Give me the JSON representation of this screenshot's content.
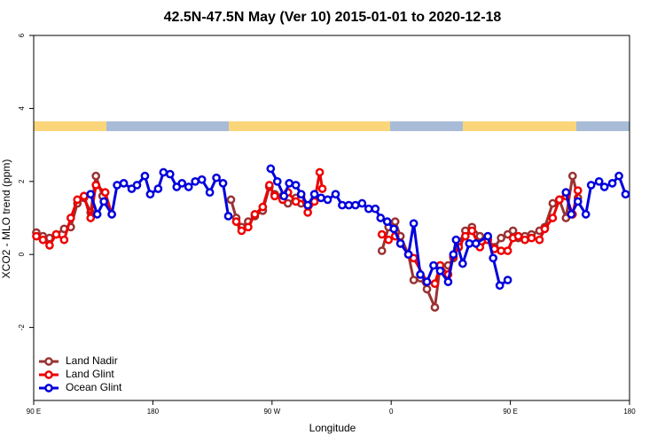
{
  "chart_data": {
    "type": "line",
    "title": "42.5N-47.5N May (Ver 10)   2015-01-01 to 2020-12-18",
    "x_label": "Longitude",
    "y_label": "XCO2 - MLO trend (ppm)",
    "xlim": [
      90,
      540
    ],
    "ylim": [
      -4,
      6
    ],
    "xticks": [
      {
        "value": 90,
        "label": "90 E"
      },
      180,
      {
        "value": 270,
        "label": "90 W"
      },
      {
        "value": 360,
        "label": "0"
      },
      {
        "value": 450,
        "label": "90 E"
      },
      {
        "value": 540,
        "label": "180"
      }
    ],
    "yticks": [
      -2,
      0,
      2,
      4,
      6
    ],
    "legend": "bottom-left",
    "series": [
      {
        "name": "Land Nadir",
        "color": "#993333",
        "x": [
          92,
          97,
          102,
          107,
          113,
          118,
          123,
          128,
          133,
          137,
          142,
          null,
          239,
          243,
          247,
          252,
          257,
          263,
          268,
          272,
          278,
          282,
          288,
          292,
          null,
          353,
          358,
          363,
          367,
          373,
          377,
          382,
          387,
          393,
          397,
          403,
          407,
          411,
          416,
          421,
          427,
          433,
          438,
          443,
          448,
          452,
          456,
          461,
          466,
          472,
          476,
          482,
          487,
          492,
          497,
          501
        ],
        "values": [
          0.6,
          0.5,
          0.45,
          0.55,
          0.7,
          0.75,
          1.4,
          1.55,
          1.15,
          2.15,
          1.6,
          null,
          1.5,
          1.0,
          0.75,
          0.9,
          1.05,
          1.2,
          1.85,
          1.65,
          1.6,
          1.4,
          1.55,
          1.4,
          null,
          0.1,
          0.75,
          0.9,
          0.5,
          0,
          -0.7,
          -0.65,
          -0.95,
          -1.45,
          -0.3,
          -0.3,
          -0.1,
          0.3,
          0.65,
          0.75,
          0.5,
          0.4,
          0.2,
          0.45,
          0.55,
          0.65,
          0.45,
          0.5,
          0.55,
          0.65,
          0.75,
          1.4,
          1.5,
          1.0,
          2.15,
          1.55
        ]
      },
      {
        "name": "Land Glint",
        "color": "#ee0000",
        "x": [
          92,
          97,
          102,
          107,
          113,
          118,
          123,
          128,
          133,
          137,
          144,
          149,
          null,
          243,
          247,
          252,
          257,
          263,
          268,
          272,
          278,
          282,
          288,
          292,
          297,
          302,
          306,
          308,
          null,
          353,
          358,
          363,
          367,
          373,
          377,
          387,
          393,
          397,
          403,
          407,
          411,
          416,
          421,
          427,
          433,
          438,
          443,
          448,
          452,
          456,
          461,
          466,
          472,
          476,
          482,
          487,
          492,
          497,
          501
        ],
        "values": [
          0.5,
          0.4,
          0.25,
          0.55,
          0.4,
          1.0,
          1.5,
          1.6,
          1.0,
          1.9,
          1.7,
          1.1,
          null,
          0.9,
          0.65,
          0.75,
          1.1,
          1.3,
          1.9,
          1.6,
          1.5,
          1.7,
          1.45,
          1.55,
          1.15,
          1.45,
          2.25,
          1.8,
          null,
          0.55,
          0.4,
          0.5,
          0.3,
          0,
          -0.1,
          -0.75,
          -0.8,
          -0.3,
          -0.55,
          -0.05,
          0.2,
          0.5,
          0.65,
          0.2,
          0.4,
          0.15,
          0.1,
          0.1,
          0.45,
          0.5,
          0.4,
          0.45,
          0.4,
          0.7,
          1.0,
          1.5,
          1.6,
          1.1,
          1.75
        ]
      },
      {
        "name": "Ocean Glint",
        "color": "#0000dd",
        "x": [
          133,
          138,
          143,
          149,
          153,
          158,
          164,
          168,
          174,
          178,
          184,
          188,
          193,
          198,
          202,
          207,
          212,
          217,
          223,
          228,
          233,
          237,
          null,
          269,
          274,
          279,
          283,
          288,
          292,
          297,
          302,
          307,
          312,
          318,
          323,
          328,
          333,
          338,
          343,
          348,
          352,
          357,
          362,
          367,
          373,
          377,
          382,
          387,
          392,
          397,
          403,
          407,
          409,
          414,
          419,
          424,
          433,
          437,
          442,
          448,
          null,
          492,
          496,
          501,
          507,
          511,
          517,
          521,
          527,
          532,
          537
        ],
        "values": [
          1.65,
          1.1,
          1.45,
          1.1,
          1.9,
          1.95,
          1.8,
          1.9,
          2.15,
          1.65,
          1.8,
          2.25,
          2.2,
          1.85,
          1.95,
          1.85,
          2.0,
          2.05,
          1.7,
          2.1,
          1.95,
          1.05,
          null,
          2.35,
          2.0,
          1.6,
          1.95,
          1.9,
          1.65,
          1.35,
          1.65,
          1.55,
          1.5,
          1.65,
          1.35,
          1.35,
          1.35,
          1.4,
          1.25,
          1.25,
          1.0,
          0.9,
          0.7,
          0.3,
          0,
          0.85,
          -0.55,
          -0.75,
          -0.3,
          -0.45,
          -0.75,
          0,
          0.4,
          -0.25,
          0.3,
          0.3,
          0.5,
          -0.1,
          -0.85,
          -0.7,
          null,
          1.7,
          1.1,
          1.45,
          1.1,
          1.9,
          2.0,
          1.85,
          1.95,
          2.15,
          1.65
        ]
      }
    ]
  }
}
